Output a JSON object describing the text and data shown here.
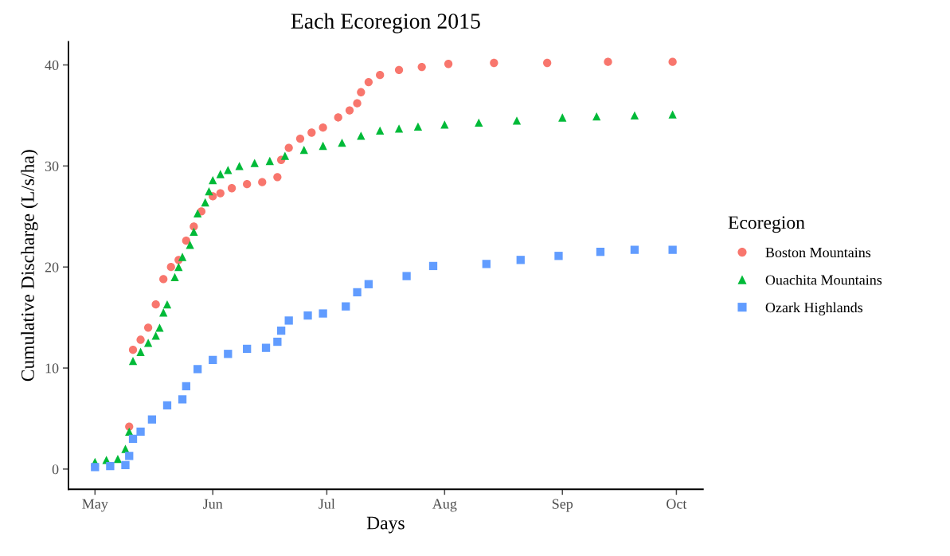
{
  "chart_data": {
    "type": "scatter",
    "title": "Each Ecoregion 2015",
    "xlabel": "Days",
    "ylabel": "Cumulative Discharge (L/s/ha)",
    "legend_title": "Ecoregion",
    "legend": "right",
    "grid": false,
    "xlim": [
      "2015-04-24",
      "2015-10-08"
    ],
    "ylim": [
      -2,
      42.3
    ],
    "yticks": [
      0,
      10,
      20,
      30,
      40
    ],
    "xticks": [
      {
        "value": "2015-05-01",
        "label": "May"
      },
      {
        "value": "2015-06-01",
        "label": "Jun"
      },
      {
        "value": "2015-07-01",
        "label": "Jul"
      },
      {
        "value": "2015-08-01",
        "label": "Aug"
      },
      {
        "value": "2015-09-01",
        "label": "Sep"
      },
      {
        "value": "2015-10-01",
        "label": "Oct"
      }
    ],
    "series": [
      {
        "name": "Boston Mountains",
        "color": "#f8766d",
        "marker": "circle",
        "x": [
          "2015-05-10",
          "2015-05-11",
          "2015-05-13",
          "2015-05-15",
          "2015-05-17",
          "2015-05-19",
          "2015-05-21",
          "2015-05-23",
          "2015-05-25",
          "2015-05-27",
          "2015-05-29",
          "2015-06-01",
          "2015-06-03",
          "2015-06-06",
          "2015-06-10",
          "2015-06-14",
          "2015-06-18",
          "2015-06-19",
          "2015-06-21",
          "2015-06-24",
          "2015-06-27",
          "2015-06-30",
          "2015-07-04",
          "2015-07-07",
          "2015-07-09",
          "2015-07-10",
          "2015-07-12",
          "2015-07-15",
          "2015-07-20",
          "2015-07-26",
          "2015-08-02",
          "2015-08-14",
          "2015-08-28",
          "2015-09-13",
          "2015-09-30"
        ],
        "values": [
          4.2,
          11.8,
          12.8,
          14.0,
          16.3,
          18.8,
          20.0,
          20.7,
          22.6,
          24.0,
          25.5,
          27.0,
          27.3,
          27.8,
          28.2,
          28.4,
          28.9,
          30.6,
          31.8,
          32.7,
          33.3,
          33.8,
          34.8,
          35.5,
          36.2,
          37.3,
          38.3,
          39.0,
          39.5,
          39.8,
          40.1,
          40.2,
          40.2,
          40.3,
          40.3
        ]
      },
      {
        "name": "Ouachita Mountains",
        "color": "#00ba38",
        "marker": "triangle",
        "x": [
          "2015-05-01",
          "2015-05-04",
          "2015-05-07",
          "2015-05-09",
          "2015-05-10",
          "2015-05-11",
          "2015-05-13",
          "2015-05-15",
          "2015-05-17",
          "2015-05-18",
          "2015-05-19",
          "2015-05-20",
          "2015-05-22",
          "2015-05-23",
          "2015-05-24",
          "2015-05-26",
          "2015-05-27",
          "2015-05-28",
          "2015-05-30",
          "2015-05-31",
          "2015-06-01",
          "2015-06-03",
          "2015-06-05",
          "2015-06-08",
          "2015-06-12",
          "2015-06-16",
          "2015-06-20",
          "2015-06-25",
          "2015-06-30",
          "2015-07-05",
          "2015-07-10",
          "2015-07-15",
          "2015-07-20",
          "2015-07-25",
          "2015-08-01",
          "2015-08-10",
          "2015-08-20",
          "2015-09-01",
          "2015-09-10",
          "2015-09-20",
          "2015-09-30"
        ],
        "values": [
          0.7,
          0.9,
          1.0,
          2.0,
          3.7,
          10.7,
          11.6,
          12.5,
          13.2,
          14.0,
          15.5,
          16.3,
          19.0,
          20.0,
          21.0,
          22.2,
          23.5,
          25.3,
          26.4,
          27.5,
          28.6,
          29.2,
          29.6,
          30.0,
          30.3,
          30.5,
          31.0,
          31.6,
          32.0,
          32.3,
          33.0,
          33.5,
          33.7,
          33.9,
          34.1,
          34.3,
          34.5,
          34.8,
          34.9,
          35.0,
          35.1
        ]
      },
      {
        "name": "Ozark Highlands",
        "color": "#619cff",
        "marker": "square",
        "x": [
          "2015-05-01",
          "2015-05-05",
          "2015-05-09",
          "2015-05-10",
          "2015-05-11",
          "2015-05-13",
          "2015-05-16",
          "2015-05-20",
          "2015-05-24",
          "2015-05-25",
          "2015-05-28",
          "2015-06-01",
          "2015-06-05",
          "2015-06-10",
          "2015-06-15",
          "2015-06-18",
          "2015-06-19",
          "2015-06-21",
          "2015-06-26",
          "2015-06-30",
          "2015-07-06",
          "2015-07-09",
          "2015-07-12",
          "2015-07-22",
          "2015-07-29",
          "2015-08-12",
          "2015-08-21",
          "2015-08-31",
          "2015-09-11",
          "2015-09-20",
          "2015-09-30"
        ],
        "values": [
          0.2,
          0.3,
          0.4,
          1.3,
          3.0,
          3.7,
          4.9,
          6.3,
          6.9,
          8.2,
          9.9,
          10.8,
          11.4,
          11.9,
          12.0,
          12.6,
          13.7,
          14.7,
          15.2,
          15.4,
          16.1,
          17.5,
          18.3,
          19.1,
          20.1,
          20.3,
          20.7,
          21.1,
          21.5,
          21.7,
          21.7
        ]
      }
    ]
  }
}
